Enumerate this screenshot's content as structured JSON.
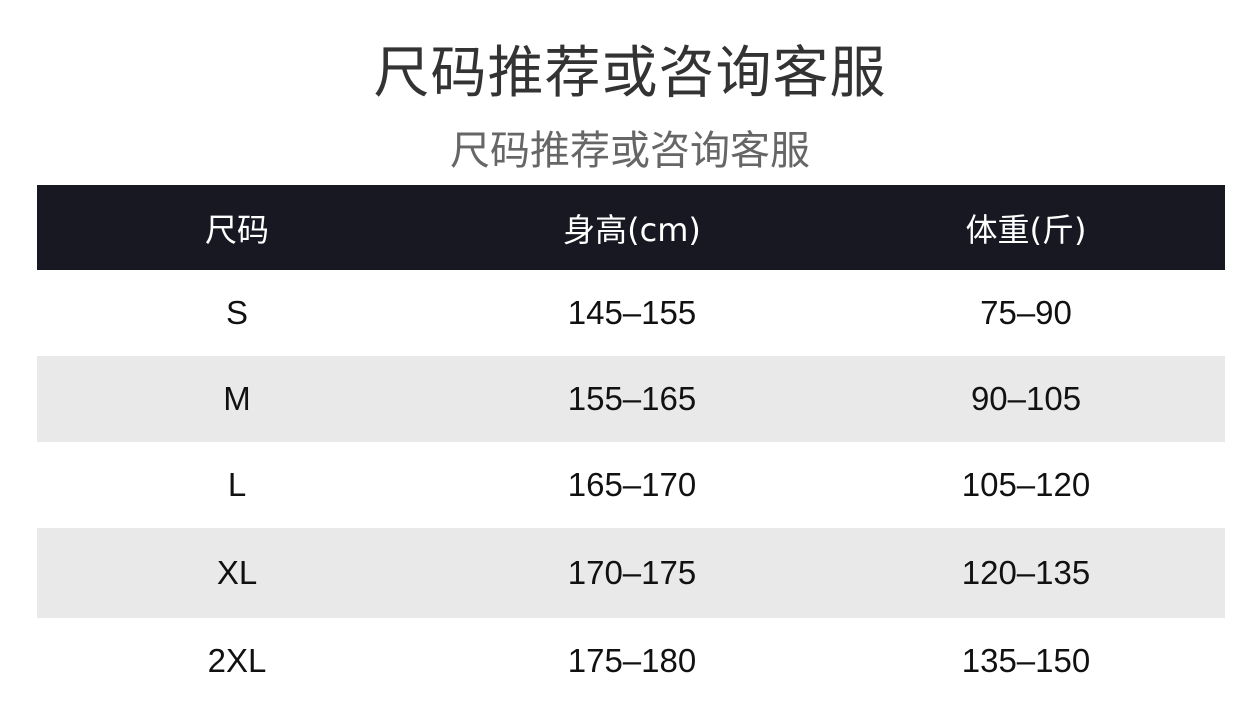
{
  "title": "尺码推荐或咨询客服",
  "subtitle": "尺码推荐或咨询客服",
  "table": {
    "headers": [
      "尺码",
      "身高(cm)",
      "体重(斤)"
    ],
    "rows": [
      [
        "S",
        "145–155",
        "75–90"
      ],
      [
        "M",
        "155–165",
        "90–105"
      ],
      [
        "L",
        "165–170",
        "105–120"
      ],
      [
        "XL",
        "170–175",
        "120–135"
      ],
      [
        "2XL",
        "175–180",
        "135–150"
      ]
    ]
  },
  "colors": {
    "header_bg": "#171822",
    "stripe": "#e9e9e9"
  }
}
